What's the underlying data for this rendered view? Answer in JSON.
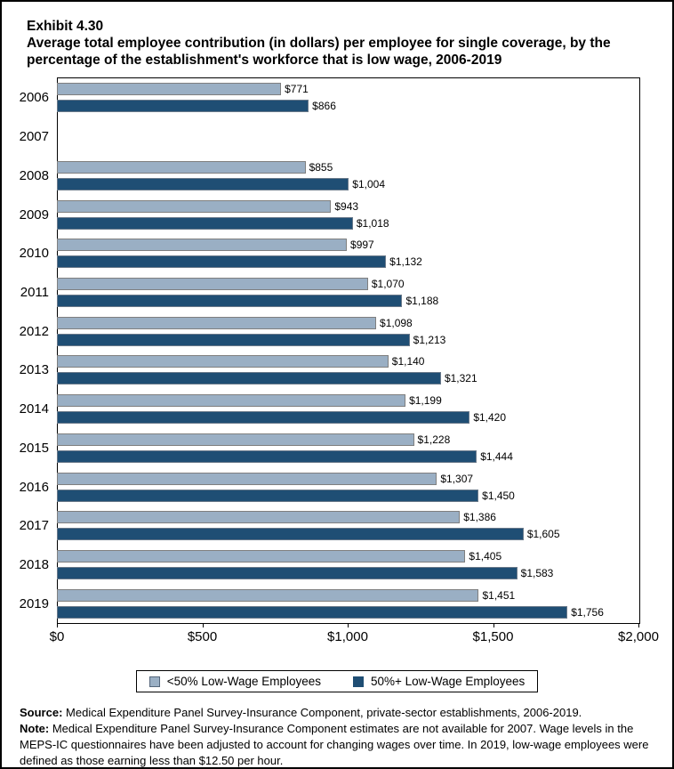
{
  "header": {
    "exhibit": "Exhibit 4.30",
    "title_line1": "Average total employee contribution (in dollars) per employee for single coverage, by the",
    "title_line2": "percentage of the establishment's workforce that is low wage, 2006-2019"
  },
  "chart_data": {
    "type": "bar",
    "orientation": "horizontal",
    "title": "Average total employee contribution (in dollars) per employee for single coverage, by the percentage of the establishment's workforce that is low wage, 2006-2019",
    "categories": [
      "2006",
      "2007",
      "2008",
      "2009",
      "2010",
      "2011",
      "2012",
      "2013",
      "2014",
      "2015",
      "2016",
      "2017",
      "2018",
      "2019"
    ],
    "series": [
      {
        "name": "<50% Low-Wage Employees",
        "color": "#9AAFC4",
        "values": [
          771,
          null,
          855,
          943,
          997,
          1070,
          1098,
          1140,
          1199,
          1228,
          1307,
          1386,
          1405,
          1451
        ],
        "labels": [
          "$771",
          "",
          "$855",
          "$943",
          "$997",
          "$1,070",
          "$1,098",
          "$1,140",
          "$1,199",
          "$1,228",
          "$1,307",
          "$1,386",
          "$1,405",
          "$1,451"
        ]
      },
      {
        "name": "50%+ Low-Wage Employees",
        "color": "#1F4E74",
        "values": [
          866,
          null,
          1004,
          1018,
          1132,
          1188,
          1213,
          1321,
          1420,
          1444,
          1450,
          1605,
          1583,
          1756
        ],
        "labels": [
          "$866",
          "",
          "$1,004",
          "$1,018",
          "$1,132",
          "$1,188",
          "$1,213",
          "$1,321",
          "$1,420",
          "$1,444",
          "$1,450",
          "$1,605",
          "$1,583",
          "$1,756"
        ]
      }
    ],
    "xlabel": "",
    "ylabel": "",
    "xlim": [
      0,
      2000
    ],
    "x_ticks": [
      "$0",
      "$500",
      "$1,000",
      "$1,500",
      "$2,000"
    ],
    "x_tick_values": [
      0,
      500,
      1000,
      1500,
      2000
    ],
    "grid": false,
    "legend_position": "bottom",
    "missing_data_note": "2007 has no bars (estimates not available)"
  },
  "legend": {
    "items": [
      {
        "label": "<50% Low-Wage Employees",
        "color": "#9AAFC4"
      },
      {
        "label": "50%+ Low-Wage Employees",
        "color": "#1F4E74"
      }
    ]
  },
  "footer": {
    "source_label": "Source:",
    "source_text": "Medical Expenditure Panel Survey-Insurance Component, private-sector establishments, 2006-2019.",
    "note_label": "Note:",
    "note_text": "Medical Expenditure Panel Survey-Insurance Component estimates are not available for 2007. Wage levels in the MEPS-IC questionnaires have been adjusted to account for changing wages over time. In 2019, low-wage employees were defined as those earning less than $12.50 per hour."
  }
}
